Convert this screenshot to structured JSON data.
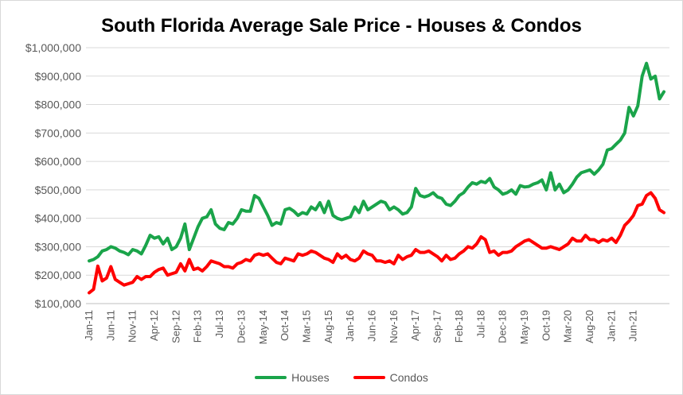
{
  "chart_data": {
    "type": "line",
    "title": "South Florida Average Sale Price - Houses & Condos",
    "ylim": [
      100000,
      1000000
    ],
    "yticks": [
      100000,
      200000,
      300000,
      400000,
      500000,
      600000,
      700000,
      800000,
      900000,
      1000000
    ],
    "ytick_labels": [
      "$100,000",
      "$200,000",
      "$300,000",
      "$400,000",
      "$500,000",
      "$600,000",
      "$700,000",
      "$800,000",
      "$900,000",
      "$1,000,000"
    ],
    "xtick_labels": [
      "Jan-11",
      "Jun-11",
      "Nov-11",
      "Apr-12",
      "Sep-12",
      "Feb-13",
      "Jul-13",
      "Dec-13",
      "May-14",
      "Oct-14",
      "Mar-15",
      "Aug-15",
      "Jan-16",
      "Jun-16",
      "Nov-16",
      "Apr-17",
      "Sep-17",
      "Feb-18",
      "Jul-18",
      "Dec-18",
      "May-19",
      "Oct-19",
      "Mar-20",
      "Aug-20",
      "Jan-21",
      "Jun-21"
    ],
    "grid": true,
    "legend_position": "bottom",
    "series": [
      {
        "name": "Houses",
        "color": "#1aa44a",
        "values": [
          250000,
          255000,
          265000,
          285000,
          290000,
          300000,
          295000,
          285000,
          280000,
          272000,
          290000,
          285000,
          275000,
          305000,
          340000,
          330000,
          335000,
          310000,
          330000,
          290000,
          300000,
          330000,
          380000,
          290000,
          330000,
          370000,
          400000,
          405000,
          430000,
          380000,
          365000,
          360000,
          385000,
          380000,
          400000,
          430000,
          425000,
          425000,
          480000,
          470000,
          440000,
          410000,
          375000,
          385000,
          380000,
          430000,
          435000,
          425000,
          410000,
          420000,
          415000,
          440000,
          430000,
          455000,
          420000,
          460000,
          410000,
          400000,
          395000,
          400000,
          405000,
          440000,
          420000,
          460000,
          430000,
          440000,
          450000,
          460000,
          455000,
          430000,
          440000,
          430000,
          415000,
          420000,
          440000,
          505000,
          480000,
          475000,
          480000,
          490000,
          475000,
          470000,
          450000,
          445000,
          460000,
          480000,
          490000,
          510000,
          525000,
          520000,
          530000,
          525000,
          540000,
          510000,
          500000,
          485000,
          490000,
          500000,
          485000,
          515000,
          510000,
          512000,
          520000,
          525000,
          535000,
          500000,
          560000,
          500000,
          520000,
          490000,
          500000,
          520000,
          545000,
          560000,
          565000,
          570000,
          555000,
          570000,
          590000,
          640000,
          645000,
          660000,
          675000,
          700000,
          790000,
          760000,
          795000,
          900000,
          945000,
          890000,
          900000,
          820000,
          845000
        ]
      },
      {
        "name": "Condos",
        "color": "#ff0000",
        "values": [
          138000,
          150000,
          232000,
          180000,
          190000,
          230000,
          185000,
          175000,
          165000,
          170000,
          175000,
          195000,
          185000,
          195000,
          195000,
          210000,
          220000,
          225000,
          200000,
          205000,
          210000,
          240000,
          215000,
          255000,
          220000,
          225000,
          215000,
          230000,
          250000,
          245000,
          240000,
          230000,
          230000,
          225000,
          240000,
          245000,
          255000,
          250000,
          270000,
          275000,
          270000,
          275000,
          260000,
          245000,
          240000,
          260000,
          255000,
          250000,
          275000,
          270000,
          275000,
          285000,
          280000,
          270000,
          260000,
          255000,
          245000,
          275000,
          260000,
          270000,
          255000,
          250000,
          260000,
          285000,
          275000,
          270000,
          250000,
          250000,
          245000,
          250000,
          240000,
          270000,
          255000,
          265000,
          270000,
          290000,
          280000,
          280000,
          285000,
          275000,
          265000,
          250000,
          270000,
          255000,
          260000,
          275000,
          285000,
          300000,
          295000,
          310000,
          335000,
          325000,
          280000,
          285000,
          270000,
          280000,
          280000,
          285000,
          300000,
          310000,
          320000,
          325000,
          315000,
          305000,
          295000,
          295000,
          300000,
          295000,
          290000,
          300000,
          310000,
          330000,
          320000,
          320000,
          340000,
          325000,
          325000,
          315000,
          325000,
          320000,
          330000,
          315000,
          340000,
          375000,
          390000,
          410000,
          445000,
          450000,
          480000,
          490000,
          470000,
          430000,
          420000
        ]
      }
    ]
  }
}
